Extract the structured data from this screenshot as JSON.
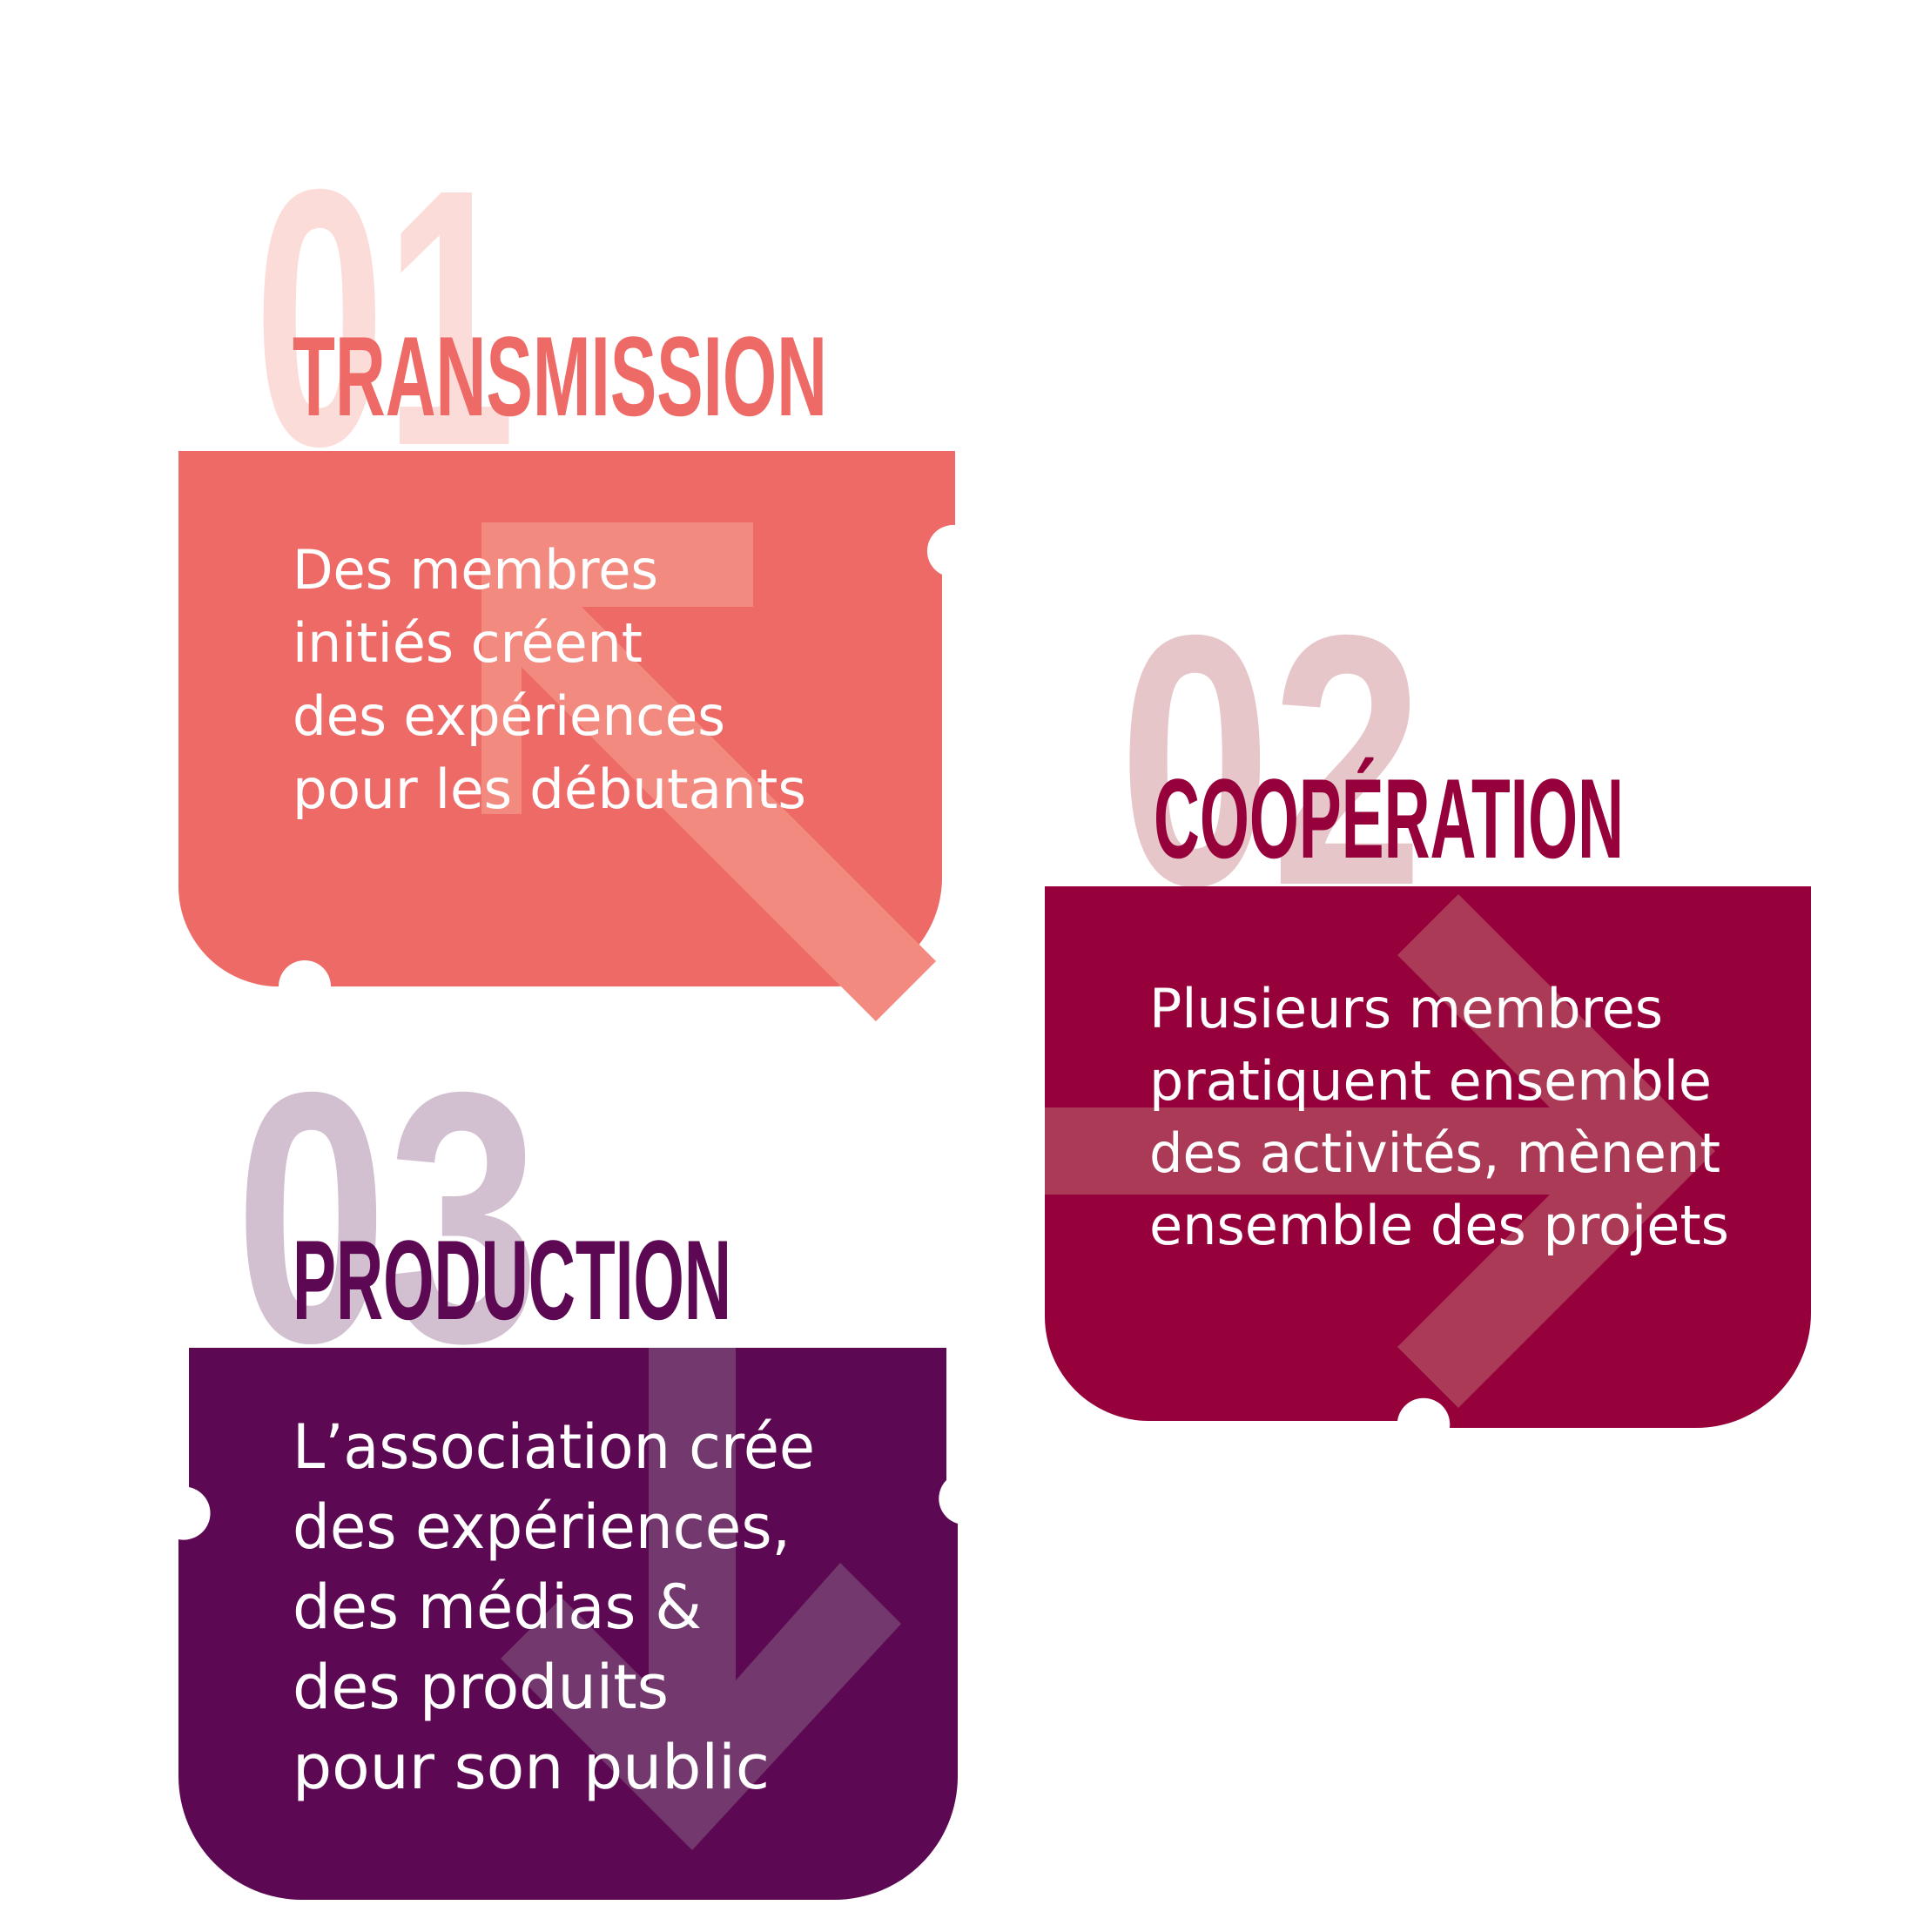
{
  "colors": {
    "background": "#ffffff",
    "transmission_panel": "#ee6a66",
    "transmission_number": "#fbdcd8",
    "transmission_arrow": "#f28a80",
    "transmission_title": "#ee6a66",
    "cooperation_panel": "#96003b",
    "cooperation_number": "#e7c6c9",
    "cooperation_arrow": "#aa3a56",
    "cooperation_title": "#96003b",
    "production_panel": "#5c0852",
    "production_number": "#d2c0d1",
    "production_arrow": "#73386d",
    "production_title": "#5c0852",
    "body_text": "#ffffff"
  },
  "cards": [
    {
      "id": "transmission",
      "number": "01",
      "title": "TRANSMISSION",
      "lines": [
        "Des membres",
        "initiés créent",
        "des expériences",
        "pour les débutants"
      ],
      "arrow_icon": "arrow-up-left-icon"
    },
    {
      "id": "cooperation",
      "number": "02",
      "title": "COOPÉRATION",
      "lines": [
        "Plusieurs membres",
        "pratiquent ensemble",
        "des activités, mènent",
        "ensemble des projets"
      ],
      "arrow_icon": "arrow-right-icon"
    },
    {
      "id": "production",
      "number": "03",
      "title": "PRODUCTION",
      "lines": [
        "L’association crée",
        "des expériences,",
        "des médias &",
        "des produits",
        "pour son public"
      ],
      "arrow_icon": "arrow-down-icon"
    }
  ]
}
